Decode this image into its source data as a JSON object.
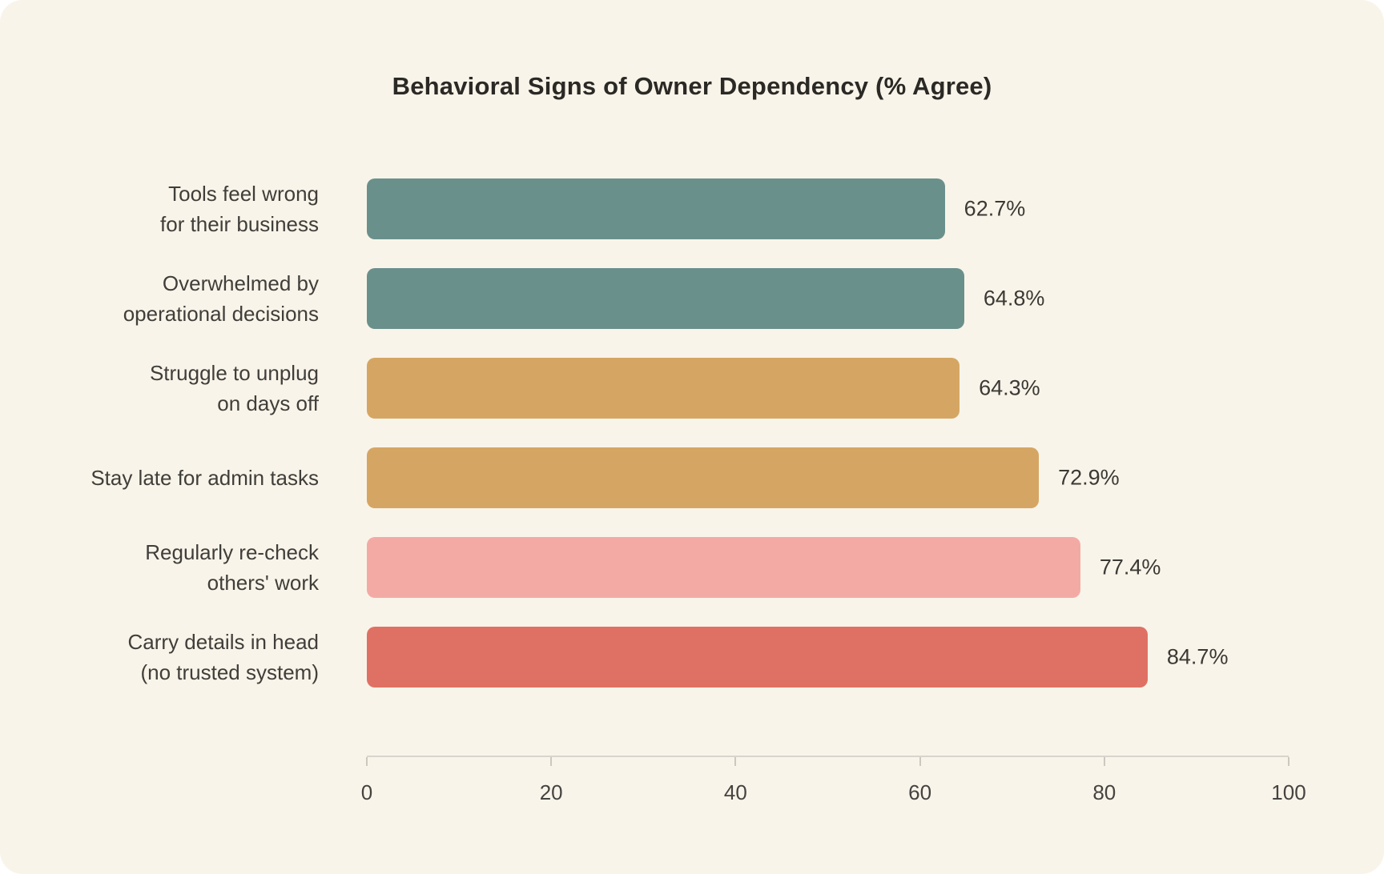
{
  "chart_data": {
    "type": "bar",
    "orientation": "horizontal",
    "title": "Behavioral Signs of Owner Dependency (% Agree)",
    "categories": [
      "Tools feel wrong for their business",
      "Overwhelmed by operational decisions",
      "Struggle to unplug on days off",
      "Stay late for admin tasks",
      "Regularly re-check others' work",
      "Carry details in head (no trusted system)"
    ],
    "values": [
      62.7,
      64.8,
      64.3,
      72.9,
      77.4,
      84.7
    ],
    "bars": [
      {
        "label_lines": [
          "Tools feel wrong",
          "for their business"
        ],
        "value": 62.7,
        "display": "62.7%",
        "color": "#6a908c"
      },
      {
        "label_lines": [
          "Overwhelmed by",
          "operational decisions"
        ],
        "value": 64.8,
        "display": "64.8%",
        "color": "#6a908c"
      },
      {
        "label_lines": [
          "Struggle to unplug",
          "on days off"
        ],
        "value": 64.3,
        "display": "64.3%",
        "color": "#d5a663"
      },
      {
        "label_lines": [
          "Stay late for admin tasks"
        ],
        "value": 72.9,
        "display": "72.9%",
        "color": "#d5a663"
      },
      {
        "label_lines": [
          "Regularly re-check",
          "others' work"
        ],
        "value": 77.4,
        "display": "77.4%",
        "color": "#f3aaa5"
      },
      {
        "label_lines": [
          "Carry details in head",
          "(no trusted system)"
        ],
        "value": 84.7,
        "display": "84.7%",
        "color": "#df7164"
      }
    ],
    "x_ticks": [
      "0",
      "20",
      "40",
      "60",
      "80",
      "100"
    ],
    "xlim": [
      0,
      100
    ],
    "xlabel": "",
    "ylabel": "",
    "grid": false,
    "legend": false,
    "background_color": "#f9f4e9",
    "page_color": "#ffffff",
    "title_color": "#2b2925",
    "label_color": "#403e3a",
    "axis_color": "#d8d5cd"
  }
}
